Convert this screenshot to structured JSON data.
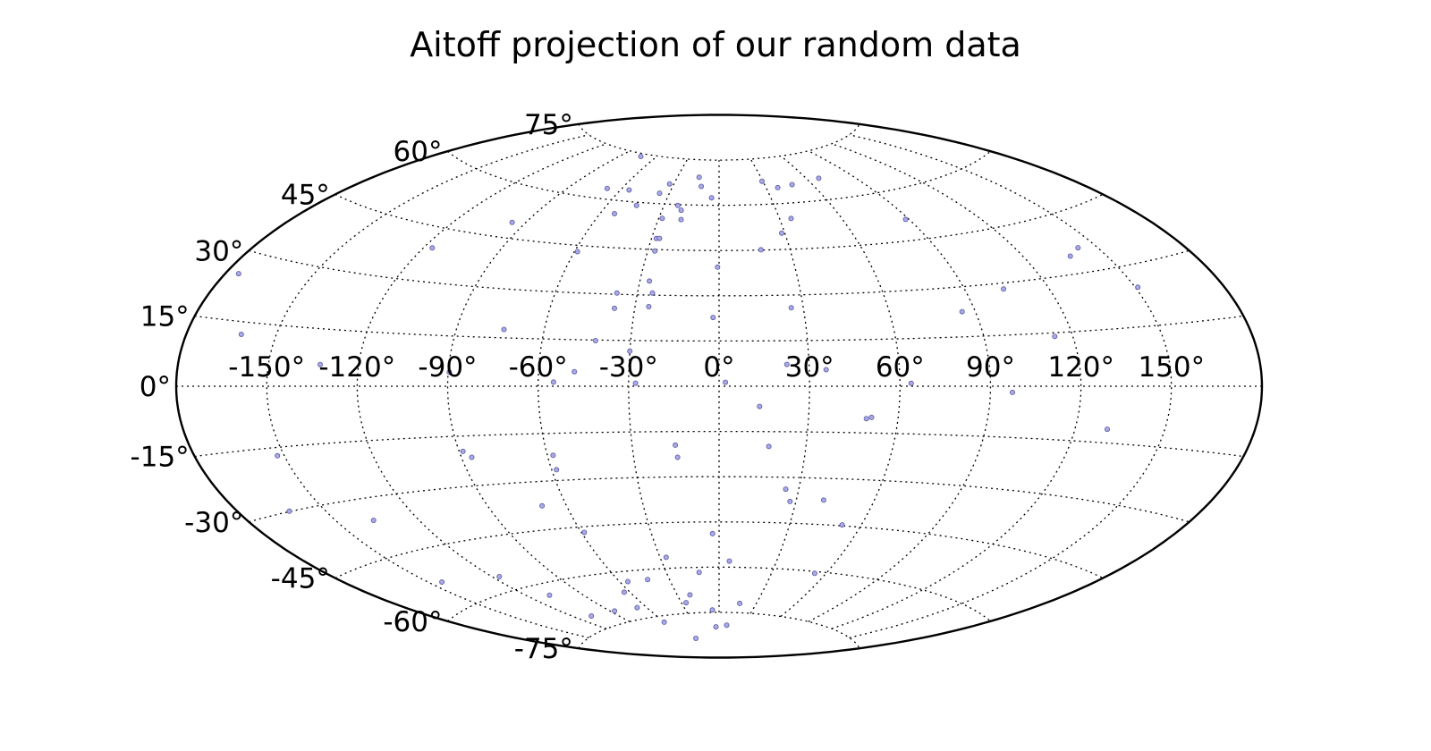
{
  "chart_data": {
    "type": "scatter",
    "projection": "aitoff",
    "title": "Aitoff projection of our random data",
    "grid": true,
    "point_color": "#a9a9e8",
    "point_edge_color": "#5a5aa0",
    "xlim": [
      -180,
      180
    ],
    "ylim": [
      -90,
      90
    ],
    "lon_ticks": [
      -150,
      -120,
      -90,
      -60,
      -30,
      0,
      30,
      60,
      90,
      120,
      150
    ],
    "lat_ticks": [
      -75,
      -60,
      -45,
      -30,
      -15,
      0,
      15,
      30,
      45,
      60,
      75
    ],
    "lon_tick_labels": [
      "-150°",
      "-120°",
      "-90°",
      "-60°",
      "-30°",
      "0°",
      "30°",
      "60°",
      "90°",
      "120°",
      "150°"
    ],
    "lat_tick_labels": [
      "-75°",
      "-60°",
      "-45°",
      "-30°",
      "-15°",
      "0°",
      "15°",
      "30°",
      "45°",
      "60°",
      "75°"
    ],
    "points": [
      [
        -175.5,
        25.1
      ],
      [
        -161.7,
        12.1
      ],
      [
        -132.8,
        5.7
      ],
      [
        -89.6,
        4.2
      ],
      [
        -152.3,
        -17.0
      ],
      [
        -162.5,
        -29.9
      ],
      [
        -144.6,
        -53.4
      ],
      [
        -116.8,
        -55.9
      ],
      [
        -136.5,
        -35.8
      ],
      [
        -116.7,
        39.4
      ],
      [
        -95.8,
        49.6
      ],
      [
        -58.8,
        43.0
      ],
      [
        -54.9,
        1.3
      ],
      [
        -58.0,
        -22.0
      ],
      [
        -58.3,
        -26.6
      ],
      [
        -86.4,
        -21.5
      ],
      [
        -88.7,
        -19.6
      ],
      [
        -58.8,
        -46.8
      ],
      [
        -69.4,
        -37.6
      ],
      [
        -63.6,
        -66.4
      ],
      [
        -55.3,
        -63.3
      ],
      [
        -48.1,
        4.7
      ],
      [
        -30.0,
        11.5
      ],
      [
        -27.7,
        1.0
      ],
      [
        -18.8,
        55.1
      ],
      [
        -4.4,
        62.5
      ],
      [
        -26.9,
        -56.4
      ],
      [
        -11.4,
        -61.7
      ],
      [
        -6.1,
        -74.2
      ],
      [
        -4.1,
        -79.8
      ],
      [
        -14.6,
        -23.5
      ],
      [
        -15.1,
        -19.5
      ],
      [
        -21.0,
        -69.0
      ],
      [
        -26.3,
        -71.5
      ],
      [
        -42.9,
        -63.2
      ],
      [
        -60.5,
        -77.0
      ],
      [
        -45.3,
        -83.2
      ],
      [
        -67.1,
        -71.5
      ],
      [
        -86.8,
        -71.3
      ],
      [
        -108.2,
        -63.4
      ],
      [
        -108.5,
        -71.1
      ],
      [
        -20.0,
        58.2
      ],
      [
        -2.1,
        22.8
      ],
      [
        -0.6,
        39.5
      ],
      [
        2.1,
        1.3
      ],
      [
        13.5,
        -6.7
      ],
      [
        17.2,
        -19.9
      ],
      [
        -2.9,
        -48.9
      ],
      [
        5.4,
        -58.0
      ],
      [
        9.6,
        -79.2
      ],
      [
        16.7,
        -71.9
      ],
      [
        25.7,
        25.8
      ],
      [
        51.1,
        -10.0
      ],
      [
        49.4,
        -10.4
      ],
      [
        28.6,
        50.4
      ],
      [
        85.4,
        22.6
      ],
      [
        113.9,
        14.0
      ],
      [
        150.9,
        24.6
      ],
      [
        103.9,
        28.3
      ],
      [
        63.7,
        0.9
      ],
      [
        35.6,
        5.4
      ],
      [
        22.6,
        7.2
      ],
      [
        40.6,
        -37.1
      ],
      [
        97.3,
        -1.8
      ],
      [
        130.8,
        -11.4
      ],
      [
        27.7,
        -37.9
      ],
      [
        25.1,
        -33.9
      ],
      [
        52.1,
        -44.7
      ],
      [
        53.9,
        -60.6
      ],
      [
        88.5,
        51.3
      ],
      [
        137.1,
        34.6
      ],
      [
        143.0,
        36.2
      ],
      [
        17.7,
        45.1
      ],
      [
        37.3,
        65.2
      ],
      [
        47.5,
        65.8
      ],
      [
        67.9,
        66.8
      ],
      [
        35.7,
        55.0
      ],
      [
        29.4,
        67.6
      ],
      [
        -73.4,
        74.1
      ],
      [
        -68.4,
        63.3
      ],
      [
        -55.0,
        63.6
      ],
      [
        -53.0,
        55.8
      ],
      [
        -44.6,
        59.0
      ],
      [
        -35.8,
        63.4
      ],
      [
        -32.8,
        66.6
      ],
      [
        -28.3,
        55.3
      ],
      [
        -27.9,
        48.6
      ],
      [
        -27.0,
        44.5
      ],
      [
        -26.5,
        48.7
      ],
      [
        -22.5,
        59.7
      ],
      [
        -14.4,
        69.2
      ],
      [
        -11.6,
        66.2
      ],
      [
        -26.4,
        34.6
      ],
      [
        -24.5,
        30.7
      ],
      [
        -25.1,
        26.2
      ],
      [
        -37.2,
        25.4
      ],
      [
        -37.5,
        30.4
      ],
      [
        -41.9,
        14.8
      ],
      [
        -73.8,
        17.6
      ]
    ]
  }
}
